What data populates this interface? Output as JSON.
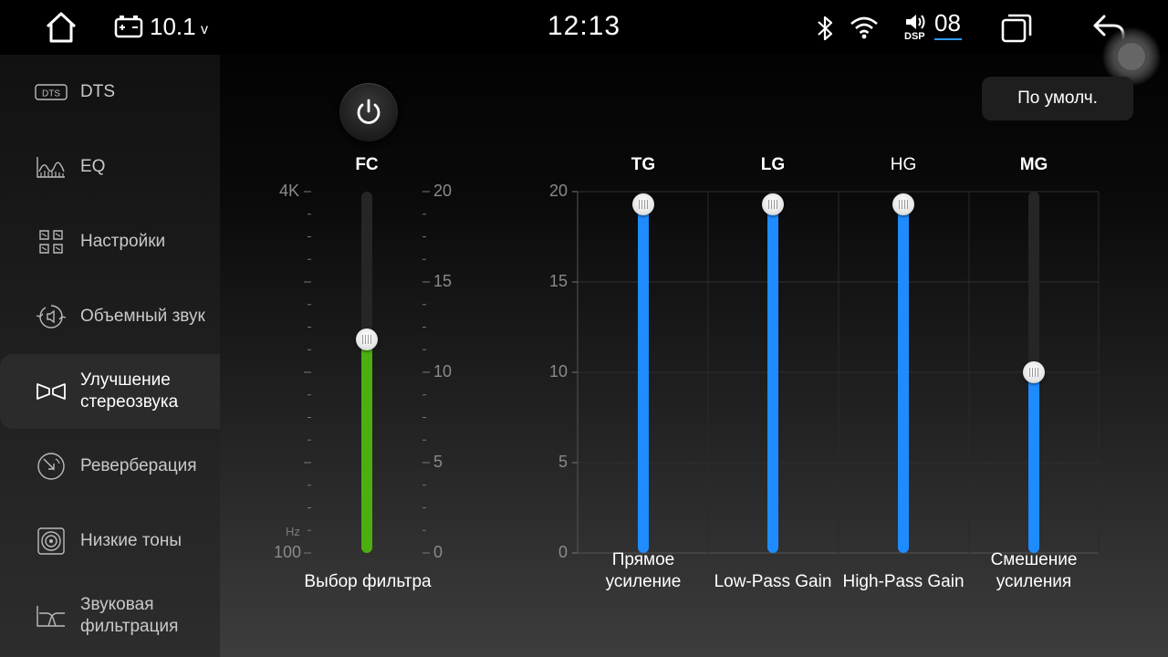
{
  "status_bar": {
    "time": "12:13",
    "voltage": "10.1",
    "voltage_unit": "v",
    "volume": "08",
    "dsp_label": "DSP",
    "icons": [
      "home-icon",
      "battery-icon",
      "bluetooth-icon",
      "wifi-icon",
      "volume-icon",
      "recent-apps-icon",
      "back-icon"
    ]
  },
  "sidebar": {
    "items": [
      {
        "label": "DTS",
        "icon": "dts-icon"
      },
      {
        "label": "EQ",
        "icon": "eq-icon"
      },
      {
        "label": "Настройки",
        "icon": "settings-icon"
      },
      {
        "label": "Объемный звук",
        "icon": "surround-icon"
      },
      {
        "label": "Улучшение\nстереозвука",
        "icon": "stereo-enhance-icon",
        "active": true
      },
      {
        "label": "Реверберация",
        "icon": "reverb-icon"
      },
      {
        "label": "Низкие тоны",
        "icon": "bass-icon"
      },
      {
        "label": "Звуковая\nфильтрация",
        "icon": "filter-icon"
      }
    ]
  },
  "main": {
    "default_button": "По умолч.",
    "filter_chart": {
      "title": "FC",
      "left_top_label": "4K",
      "left_bottom_label": "100",
      "unit_label": "Hz",
      "right_ticks": [
        "20",
        "15",
        "10",
        "5",
        "0"
      ],
      "bottom_label": "Выбор фильтра",
      "value": 11.8,
      "max": 20,
      "fill_color": "#4caf10"
    },
    "gain_chart": {
      "y_ticks": [
        "20",
        "15",
        "10",
        "5",
        "0"
      ],
      "ymax": 20,
      "fill_color": "#1e8cff",
      "channels": [
        {
          "title": "TG",
          "bold": true,
          "value": 19.3,
          "bottom_label": "Прямое\nусиление"
        },
        {
          "title": "LG",
          "bold": true,
          "value": 19.3,
          "bottom_label": "Low-Pass Gain"
        },
        {
          "title": "HG",
          "bold": false,
          "value": 19.3,
          "bottom_label": "High-Pass Gain"
        },
        {
          "title": "MG",
          "bold": true,
          "value": 10,
          "bottom_label": "Смешение\nусиления"
        }
      ]
    }
  }
}
